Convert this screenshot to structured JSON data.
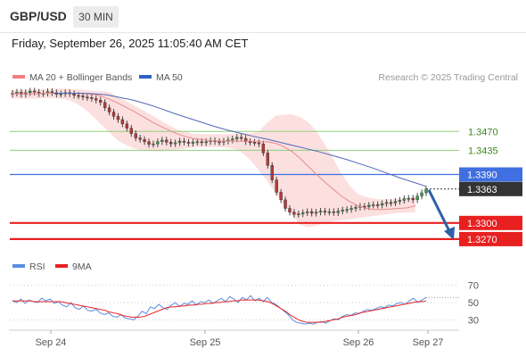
{
  "header": {
    "symbol": "GBP/USD",
    "timeframe": "30 MIN"
  },
  "datetime": "Friday, September 26, 2025 11:05:40 AM CET",
  "colors": {
    "candle_up": "#3a9a4a",
    "candle_down": "#b23a3a",
    "ma20": "#e88a8a",
    "bollinger_fill": "#fbdada",
    "ma50": "#5068b8",
    "resistance": "#8fcf7a",
    "pivot": "#3f6fe0",
    "support": "#e82020",
    "current": "#333333",
    "arrow": "#2e5fa8",
    "rsi": "#5b8de0",
    "rsi_ma": "#e82020"
  },
  "chart_data": [
    {
      "type": "candlestick",
      "legend": [
        {
          "label": "MA 20 + Bollinger Bands",
          "color": "#f08080"
        },
        {
          "label": "MA 50",
          "color": "#3060c0"
        }
      ],
      "credit": "Research © 2025 Trading Central",
      "x_ticks": [
        "Sep 24",
        "Sep 25",
        "Sep 26",
        "Sep 27"
      ],
      "ylim": [
        1.324,
        1.3555
      ],
      "price": [
        1.3541,
        1.3543,
        1.3539,
        1.3542,
        1.3545,
        1.3543,
        1.354,
        1.3541,
        1.3544,
        1.3542,
        1.3539,
        1.354,
        1.3542,
        1.354,
        1.3537,
        1.3536,
        1.3534,
        1.3533,
        1.3531,
        1.3528,
        1.3524,
        1.3514,
        1.3506,
        1.3498,
        1.3492,
        1.3484,
        1.3476,
        1.3466,
        1.3458,
        1.3455,
        1.3451,
        1.3446,
        1.3447,
        1.3451,
        1.3454,
        1.345,
        1.3447,
        1.3449,
        1.3452,
        1.345,
        1.3448,
        1.345,
        1.3451,
        1.3449,
        1.3451,
        1.3453,
        1.3451,
        1.345,
        1.3452,
        1.3454,
        1.3456,
        1.3459,
        1.3457,
        1.3451,
        1.345,
        1.3449,
        1.3447,
        1.343,
        1.3407,
        1.338,
        1.3357,
        1.3343,
        1.3327,
        1.332,
        1.3316,
        1.3317,
        1.3319,
        1.3321,
        1.3318,
        1.332,
        1.3322,
        1.332,
        1.3321,
        1.3319,
        1.3322,
        1.3324,
        1.3325,
        1.3327,
        1.3329,
        1.3331,
        1.333,
        1.3333,
        1.3334,
        1.3333,
        1.3336,
        1.3338,
        1.3337,
        1.334,
        1.3342,
        1.3345,
        1.3346,
        1.3343,
        1.335,
        1.3356,
        1.3363
      ],
      "ma20": [
        1.354,
        1.354,
        1.354,
        1.354,
        1.3541,
        1.3541,
        1.3541,
        1.3541,
        1.3541,
        1.354,
        1.3539,
        1.3535,
        1.3529,
        1.3522,
        1.3514,
        1.3506,
        1.3497,
        1.3488,
        1.348,
        1.3473,
        1.3466,
        1.3461,
        1.3457,
        1.3455,
        1.3453,
        1.3452,
        1.3452,
        1.3452,
        1.3452,
        1.3452,
        1.3451,
        1.3451,
        1.3448,
        1.3442,
        1.3433,
        1.342,
        1.3405,
        1.339,
        1.3376,
        1.3363,
        1.335,
        1.334,
        1.3332,
        1.3327,
        1.3325,
        1.3325,
        1.3326,
        1.3327,
        1.3328,
        1.3332
      ],
      "bb_upper": [
        1.3547,
        1.3547,
        1.3548,
        1.3548,
        1.3549,
        1.3549,
        1.355,
        1.3549,
        1.3548,
        1.3547,
        1.3545,
        1.3545,
        1.3542,
        1.3534,
        1.3526,
        1.3517,
        1.3509,
        1.35,
        1.3491,
        1.3482,
        1.3474,
        1.347,
        1.3466,
        1.3465,
        1.3465,
        1.3465,
        1.3465,
        1.3466,
        1.3467,
        1.3467,
        1.347,
        1.3486,
        1.3499,
        1.3501,
        1.3502,
        1.3497,
        1.3487,
        1.347,
        1.3446,
        1.342,
        1.3392,
        1.337,
        1.3354,
        1.3348,
        1.3345,
        1.3344,
        1.3344,
        1.3345,
        1.3346,
        1.3348
      ],
      "bb_lower": [
        1.3531,
        1.3531,
        1.3531,
        1.3531,
        1.3532,
        1.3532,
        1.3531,
        1.3528,
        1.3521,
        1.351,
        1.3496,
        1.3481,
        1.3466,
        1.3452,
        1.3444,
        1.3438,
        1.3435,
        1.3433,
        1.3433,
        1.3434,
        1.3436,
        1.3438,
        1.344,
        1.3441,
        1.3441,
        1.3441,
        1.344,
        1.3437,
        1.343,
        1.3416,
        1.3398,
        1.3378,
        1.3356,
        1.3334,
        1.3314,
        1.3297,
        1.3292,
        1.3295,
        1.33,
        1.3303,
        1.3305,
        1.3307,
        1.3309,
        1.3311,
        1.3313,
        1.3315,
        1.3317,
        1.3319,
        1.3319,
        1.332
      ],
      "ma50": [
        1.3541,
        1.3541,
        1.3541,
        1.354,
        1.3538,
        1.3533,
        1.3528,
        1.3521,
        1.3513,
        1.3504,
        1.3496,
        1.3488,
        1.348,
        1.3473,
        1.3467,
        1.3461,
        1.3456,
        1.345,
        1.3444,
        1.3438,
        1.3432,
        1.3425,
        1.3418,
        1.341,
        1.3402,
        1.3393,
        1.3384,
        1.3376,
        1.3368
      ],
      "levels": [
        {
          "value": 1.347,
          "label": "1.3470",
          "kind": "resistance"
        },
        {
          "value": 1.3435,
          "label": "1.3435",
          "kind": "resistance"
        },
        {
          "value": 1.339,
          "label": "1.3390",
          "kind": "pivot"
        },
        {
          "value": 1.3363,
          "label": "1.3363",
          "kind": "current"
        },
        {
          "value": 1.33,
          "label": "1.3300",
          "kind": "support"
        },
        {
          "value": 1.327,
          "label": "1.3270",
          "kind": "support"
        }
      ],
      "forecast_target": 1.327
    },
    {
      "type": "line",
      "legend": [
        {
          "label": "RSI",
          "color": "#5b8de0"
        },
        {
          "label": "9MA",
          "color": "#e82020"
        }
      ],
      "ylim": [
        22,
        78
      ],
      "y_ticks": [
        70,
        50,
        30
      ],
      "rsi": [
        52,
        50,
        54,
        49,
        53,
        51,
        50,
        55,
        52,
        54,
        49,
        51,
        47,
        45,
        50,
        44,
        42,
        46,
        41,
        40,
        42,
        38,
        36,
        38,
        34,
        33,
        36,
        32,
        31,
        30,
        34,
        40,
        37,
        45,
        43,
        48,
        44,
        42,
        47,
        50,
        45,
        49,
        48,
        52,
        47,
        51,
        50,
        53,
        49,
        52,
        55,
        51,
        57,
        54,
        50,
        56,
        53,
        58,
        52,
        55,
        51,
        56,
        50,
        48,
        44,
        40,
        36,
        30,
        27,
        26,
        25,
        26,
        25,
        27,
        28,
        26,
        29,
        31,
        30,
        34,
        36,
        35,
        38,
        37,
        40,
        42,
        41,
        43,
        45,
        44,
        47,
        46,
        49,
        50,
        48,
        52,
        55,
        50,
        53,
        56
      ],
      "rsi_ma": [
        52,
        52,
        52,
        52,
        52,
        51,
        51,
        51,
        51,
        51,
        51,
        51,
        50,
        49,
        48,
        47,
        46,
        45,
        44,
        43,
        42,
        41,
        39,
        38,
        37,
        35,
        34,
        33,
        33,
        33,
        34,
        36,
        38,
        40,
        42,
        44,
        45,
        45,
        46,
        46,
        47,
        47,
        48,
        48,
        49,
        49,
        50,
        50,
        51,
        51,
        52,
        52,
        53,
        53,
        53,
        53,
        53,
        52,
        51,
        49,
        46,
        43,
        40,
        36,
        33,
        30,
        28,
        27,
        27,
        27,
        27,
        28,
        29,
        30,
        31,
        33,
        34,
        35,
        36,
        38,
        39,
        40,
        41,
        42,
        43,
        44,
        45,
        46,
        47,
        48,
        49,
        50,
        51,
        51,
        52
      ]
    }
  ]
}
